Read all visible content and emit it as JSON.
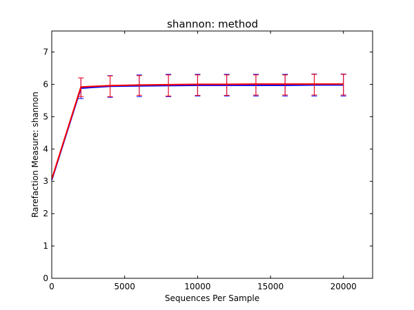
{
  "chart_data": {
    "type": "line",
    "title": "shannon: method",
    "xlabel": "Sequences Per Sample",
    "ylabel": "Rarefaction Measure: shannon",
    "xlim": [
      0,
      22000
    ],
    "ylim": [
      0,
      7.65
    ],
    "xticks": [
      0,
      5000,
      10000,
      15000,
      20000
    ],
    "yticks": [
      0,
      1,
      2,
      3,
      4,
      5,
      6,
      7
    ],
    "grid": false,
    "x": [
      10,
      2000,
      4000,
      6000,
      8000,
      10000,
      12000,
      14000,
      16000,
      18000,
      20000
    ],
    "series": [
      {
        "color": "#0000ff",
        "values": [
          3.05,
          5.88,
          5.94,
          5.95,
          5.96,
          5.97,
          5.97,
          5.97,
          5.97,
          5.98,
          5.98
        ],
        "err_low": [
          3.05,
          5.56,
          5.6,
          5.62,
          5.62,
          5.64,
          5.64,
          5.64,
          5.64,
          5.64,
          5.64
        ],
        "err_high": [
          3.05,
          6.2,
          6.27,
          6.29,
          6.31,
          6.31,
          6.31,
          6.31,
          6.31,
          6.32,
          6.32
        ]
      },
      {
        "color": "#ff0000",
        "values": [
          3.08,
          5.92,
          5.96,
          5.98,
          5.99,
          6.0,
          6.0,
          6.01,
          6.01,
          6.01,
          6.01
        ],
        "err_low": [
          3.08,
          5.62,
          5.62,
          5.66,
          5.64,
          5.66,
          5.66,
          5.67,
          5.67,
          5.67,
          5.67
        ],
        "err_high": [
          3.08,
          6.2,
          6.26,
          6.27,
          6.29,
          6.29,
          6.29,
          6.29,
          6.29,
          6.31,
          6.31
        ]
      }
    ]
  }
}
